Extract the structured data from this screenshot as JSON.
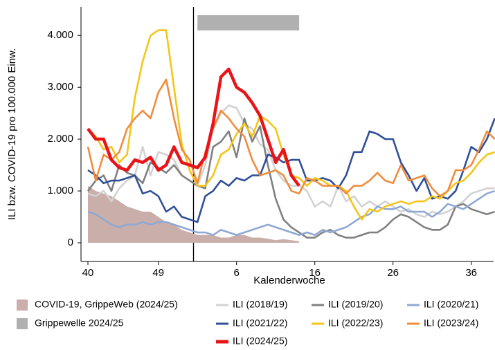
{
  "chart_data": {
    "type": "line",
    "y_label": "ILI bzw. COVID-19 pro 100.000 Einw.",
    "x_label": "Kalenderwoche",
    "categories": [
      "40",
      null,
      null,
      null,
      null,
      null,
      null,
      null,
      null,
      "49",
      null,
      null,
      null,
      null,
      null,
      null,
      null,
      null,
      null,
      "6",
      null,
      null,
      null,
      null,
      null,
      null,
      null,
      null,
      null,
      "16",
      null,
      null,
      null,
      null,
      null,
      null,
      null,
      null,
      null,
      "26",
      null,
      null,
      null,
      null,
      null,
      null,
      null,
      null,
      null,
      "36",
      null,
      null,
      null
    ],
    "ylim": [
      -360,
      4550
    ],
    "yticks": [
      {
        "value": 0,
        "label": "0"
      },
      {
        "value": 1000,
        "label": "1.000"
      },
      {
        "value": 2000,
        "label": "2.000"
      },
      {
        "value": 3000,
        "label": "3.000"
      },
      {
        "value": 4000,
        "label": "4.000"
      }
    ],
    "area": {
      "name": "COVID-19, GrippeWeb (2024/25)",
      "color": "#c9aeaa",
      "values": [
        1100,
        1000,
        950,
        900,
        800,
        700,
        650,
        600,
        600,
        500,
        400,
        350,
        250,
        200,
        150,
        150,
        150,
        100,
        100,
        150,
        150,
        100,
        100,
        80,
        50,
        70,
        50,
        30,
        null,
        null,
        null,
        null,
        null,
        null,
        null,
        null,
        null,
        null,
        null,
        null,
        null,
        null,
        null,
        null,
        null,
        null,
        null,
        null,
        null,
        null,
        null,
        null,
        null
      ]
    },
    "band": {
      "name": "Grippewelle 2024/25",
      "color": "#b0b0b0",
      "x_range": [
        14,
        27
      ]
    },
    "series": [
      {
        "name": "ILI (2018/19)",
        "color": "#d2d2d2",
        "values": [
          950,
          900,
          1000,
          800,
          1050,
          1200,
          1300,
          1850,
          1300,
          1750,
          1700,
          1600,
          1300,
          1200,
          1100,
          1500,
          2200,
          2500,
          2650,
          2600,
          2300,
          2200,
          1900,
          1800,
          1400,
          1200,
          1100,
          1100,
          1000,
          700,
          800,
          700,
          1100,
          800,
          900,
          700,
          800,
          700,
          800,
          700,
          600,
          650,
          550,
          500,
          600,
          550,
          600,
          700,
          800,
          950,
          1000,
          1050,
          1050
        ]
      },
      {
        "name": "ILI (2019/20)",
        "color": "#808080",
        "values": [
          1000,
          1200,
          1300,
          1000,
          1500,
          1350,
          1300,
          1150,
          1550,
          1450,
          1350,
          1500,
          1300,
          1200,
          1100,
          1050,
          1850,
          1950,
          2150,
          1650,
          2400,
          1950,
          2250,
          1500,
          850,
          450,
          300,
          200,
          100,
          100,
          200,
          250,
          150,
          100,
          100,
          150,
          200,
          200,
          300,
          450,
          550,
          500,
          400,
          300,
          250,
          250,
          350,
          700,
          750,
          650,
          600,
          550,
          600
        ]
      },
      {
        "name": "ILI (2020/21)",
        "color": "#8fa8d4",
        "values": [
          600,
          550,
          450,
          350,
          300,
          350,
          350,
          400,
          350,
          400,
          400,
          350,
          300,
          250,
          200,
          200,
          150,
          250,
          200,
          150,
          200,
          250,
          300,
          350,
          300,
          250,
          200,
          150,
          200,
          150,
          250,
          200,
          250,
          300,
          400,
          500,
          550,
          700,
          650,
          650,
          700,
          600,
          600,
          600,
          500,
          600,
          750,
          700,
          650,
          750,
          850,
          950,
          1000
        ]
      },
      {
        "name": "ILI (2021/22)",
        "color": "#2f4f97",
        "values": [
          1400,
          1300,
          1150,
          1200,
          1200,
          1250,
          1300,
          950,
          1000,
          900,
          600,
          700,
          500,
          450,
          400,
          900,
          1000,
          1200,
          1100,
          1250,
          1200,
          1300,
          1300,
          1700,
          1650,
          1550,
          1600,
          1600,
          1200,
          1200,
          1250,
          1200,
          1050,
          1300,
          1750,
          1750,
          2150,
          2100,
          2000,
          2000,
          1550,
          1300,
          1000,
          1250,
          850,
          900,
          850,
          1000,
          1400,
          1850,
          1750,
          2000,
          2400
        ]
      },
      {
        "name": "ILI (2022/23)",
        "color": "#f5c518",
        "values": [
          2200,
          2050,
          1800,
          1850,
          1550,
          1700,
          2800,
          3500,
          4000,
          4100,
          4100,
          3000,
          1900,
          1400,
          1100,
          1100,
          1300,
          1700,
          1800,
          2100,
          2300,
          2050,
          2450,
          2350,
          2200,
          1700,
          1300,
          1250,
          1100,
          1250,
          1200,
          1100,
          1100,
          1000,
          700,
          450,
          650,
          600,
          700,
          750,
          800,
          750,
          800,
          800,
          900,
          850,
          1000,
          1150,
          1200,
          1350,
          1550,
          1700,
          1750
        ]
      },
      {
        "name": "ILI (2023/24)",
        "color": "#f08c3c",
        "values": [
          1850,
          1200,
          1700,
          1600,
          1750,
          2200,
          2400,
          2550,
          2400,
          2900,
          3150,
          2400,
          1800,
          1600,
          1150,
          1750,
          2200,
          2550,
          2400,
          2200,
          2050,
          1600,
          1300,
          1350,
          1400,
          1300,
          1000,
          950,
          1250,
          1200,
          1100,
          1100,
          1100,
          950,
          1100,
          1100,
          1200,
          1350,
          1200,
          1150,
          1500,
          1200,
          1250,
          1300,
          1050,
          900,
          1000,
          1400,
          1400,
          1500,
          1800,
          2150,
          2000
        ]
      },
      {
        "name": "ILI (2024/25)",
        "color": "#e8141a",
        "values": [
          2200,
          2000,
          2000,
          1600,
          1450,
          1400,
          1600,
          1550,
          1650,
          1400,
          1500,
          1850,
          1550,
          1500,
          1450,
          1650,
          2300,
          3200,
          3350,
          3000,
          2900,
          2700,
          2450,
          2000,
          1550,
          1800,
          1300,
          1100,
          null,
          null,
          null,
          null,
          null,
          null,
          null,
          null,
          null,
          null,
          null,
          null,
          null,
          null,
          null,
          null,
          null,
          null,
          null,
          null,
          null,
          null,
          null,
          null,
          null
        ]
      }
    ]
  }
}
